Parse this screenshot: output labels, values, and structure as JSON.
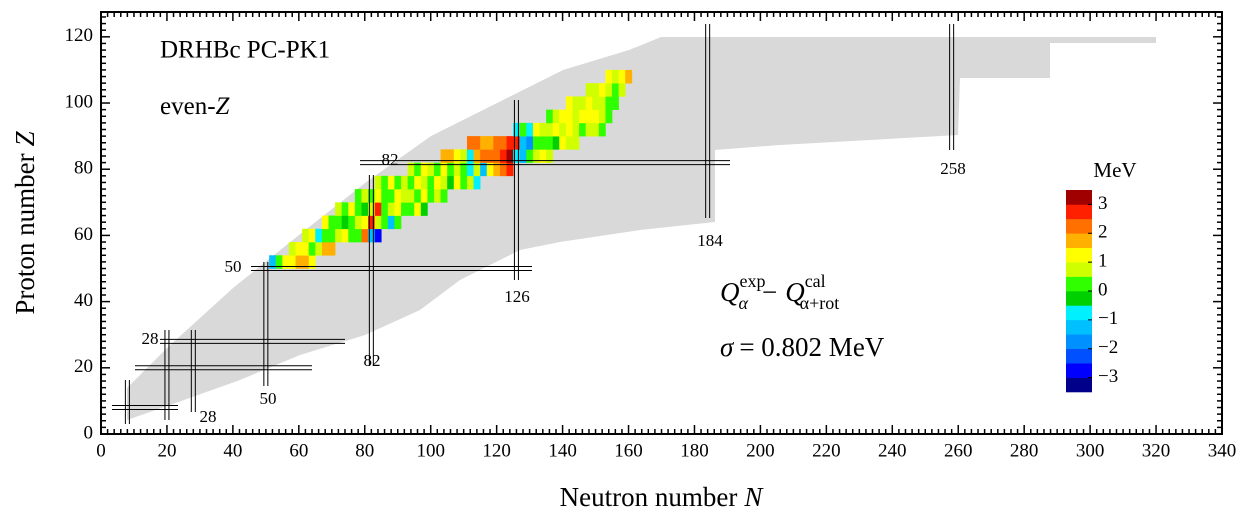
{
  "chart_data": {
    "type": "heatmap",
    "x_label": [
      "Neutron number",
      "N"
    ],
    "y_label": [
      "Proton number",
      "Z"
    ],
    "annotations": {
      "title": "DRHBc PC-PK1",
      "subset": [
        "even-",
        "Z"
      ],
      "formula": {
        "left": {
          "symbol": "Q",
          "sub": "α",
          "sup": "exp"
        },
        "operator": "−",
        "right": {
          "symbol": "Q",
          "sub": "α+rot",
          "sup": "cal"
        }
      },
      "sigma": [
        "σ",
        "= 0.802 MeV"
      ]
    },
    "xlim": [
      0,
      340
    ],
    "xticks": [
      0,
      20,
      40,
      60,
      80,
      100,
      120,
      140,
      160,
      180,
      200,
      220,
      240,
      260,
      280,
      300,
      320,
      340
    ],
    "ylim": [
      0,
      127.5
    ],
    "yticks": [
      0,
      20,
      40,
      60,
      80,
      100,
      120
    ],
    "magic_N": [
      8,
      20,
      28,
      50,
      82,
      126,
      184,
      258
    ],
    "magic_Z": [
      8,
      20,
      28,
      50,
      82
    ],
    "colorbar": {
      "title": "MeV",
      "clim": [
        -3.5,
        3.5
      ],
      "ticks": [
        3,
        2,
        1,
        0,
        {
          "value": -1,
          "label": "−1"
        },
        {
          "value": -2,
          "label": "−2"
        },
        {
          "value": -3,
          "label": "−3"
        }
      ],
      "colors": [
        "#00008b",
        "#0000ff",
        "#0050ff",
        "#0090ff",
        "#00c0ff",
        "#00f0ff",
        "#00d000",
        "#30ff00",
        "#d0ff00",
        "#ffff00",
        "#ffb000",
        "#ff7000",
        "#ff2000",
        "#a00000"
      ]
    },
    "rows": [
      {
        "Z": 52,
        "N": 52,
        "values": [
          -1.2,
          0.2,
          1.1,
          1.3,
          1.5,
          1.6,
          1.4
        ]
      },
      {
        "Z": 56,
        "N": 58,
        "values": [
          0.5,
          1.2,
          1.0,
          0.2,
          0.8,
          1.5,
          1.7
        ]
      },
      {
        "Z": 60,
        "N": 62,
        "values": [
          0.8,
          1.0,
          -0.8,
          0.2,
          0.0,
          0.6,
          1.2,
          0.4,
          0.1,
          2.4,
          -1.5,
          -2.6
        ]
      },
      {
        "Z": 64,
        "N": 68,
        "values": [
          1.0,
          0.3,
          0.2,
          -0.2,
          0.1,
          0.9,
          1.3,
          2.5,
          0.5,
          0.1,
          -1.2,
          0.3
        ]
      },
      {
        "Z": 68,
        "N": 72,
        "values": [
          0.6,
          0.1,
          1.0,
          0.3,
          -0.1,
          0.8,
          2.6,
          0.2,
          0.9,
          1.2,
          0.0,
          0.4,
          1.1,
          -0.5
        ]
      },
      {
        "Z": 72,
        "N": 78,
        "values": [
          0.3,
          0.9,
          0.1,
          1.0,
          0.2,
          0.0,
          1.2,
          0.9,
          0.6,
          0.1,
          1.0,
          0.3,
          0.7,
          0.2
        ]
      },
      {
        "Z": 76,
        "N": 84,
        "values": [
          0.9,
          0.0,
          1.1,
          0.2,
          0.8,
          0.1,
          1.0,
          0.6,
          0.3,
          1.1,
          0.8,
          -0.4,
          1.2,
          0.2,
          0.5,
          -1.0
        ]
      },
      {
        "Z": 80,
        "N": 94,
        "values": [
          0.9,
          0.2,
          1.0,
          0.8,
          0.1,
          1.1,
          0.4,
          0.9,
          0.2,
          -0.8,
          0.6,
          -1.1,
          1.2,
          1.6,
          2.0,
          2.8
        ]
      },
      {
        "Z": 84,
        "N": 104,
        "values": [
          1.6,
          1.8,
          1.1,
          0.9,
          -0.9,
          1.5,
          2.0,
          2.1,
          2.3,
          2.6,
          3.2,
          -0.8,
          -1.3,
          0.4,
          0.9,
          1.2,
          0.8
        ]
      },
      {
        "Z": 88,
        "N": 112,
        "values": [
          2.2,
          2.0,
          1.8,
          1.7,
          2.1,
          2.4,
          2.6,
          2.9,
          -1.2,
          -1.6,
          0.4,
          0.1,
          0.3,
          -0.2,
          1.0,
          0.8,
          0.6
        ]
      },
      {
        "Z": 92,
        "N": 126,
        "values": [
          -1.0,
          0.2,
          -0.7,
          1.0,
          0.6,
          0.8,
          1.1,
          0.9,
          1.0,
          0.7,
          0.4,
          0.8,
          0.6,
          0.2
        ]
      },
      {
        "Z": 96,
        "N": 136,
        "values": [
          0.3,
          0.9,
          1.2,
          1.1,
          0.5,
          1.0,
          1.3,
          1.2,
          0.6,
          0.4
        ]
      },
      {
        "Z": 100,
        "N": 142,
        "values": [
          1.1,
          0.8,
          0.9,
          1.0,
          0.6,
          0.8,
          0.3,
          0.2
        ]
      },
      {
        "Z": 104,
        "N": 148,
        "values": [
          0.9,
          0.6,
          1.0,
          0.5,
          0.2,
          0.9
        ]
      },
      {
        "Z": 108,
        "N": 154,
        "values": [
          1.1,
          0.9,
          1.3,
          1.5
        ]
      }
    ]
  }
}
